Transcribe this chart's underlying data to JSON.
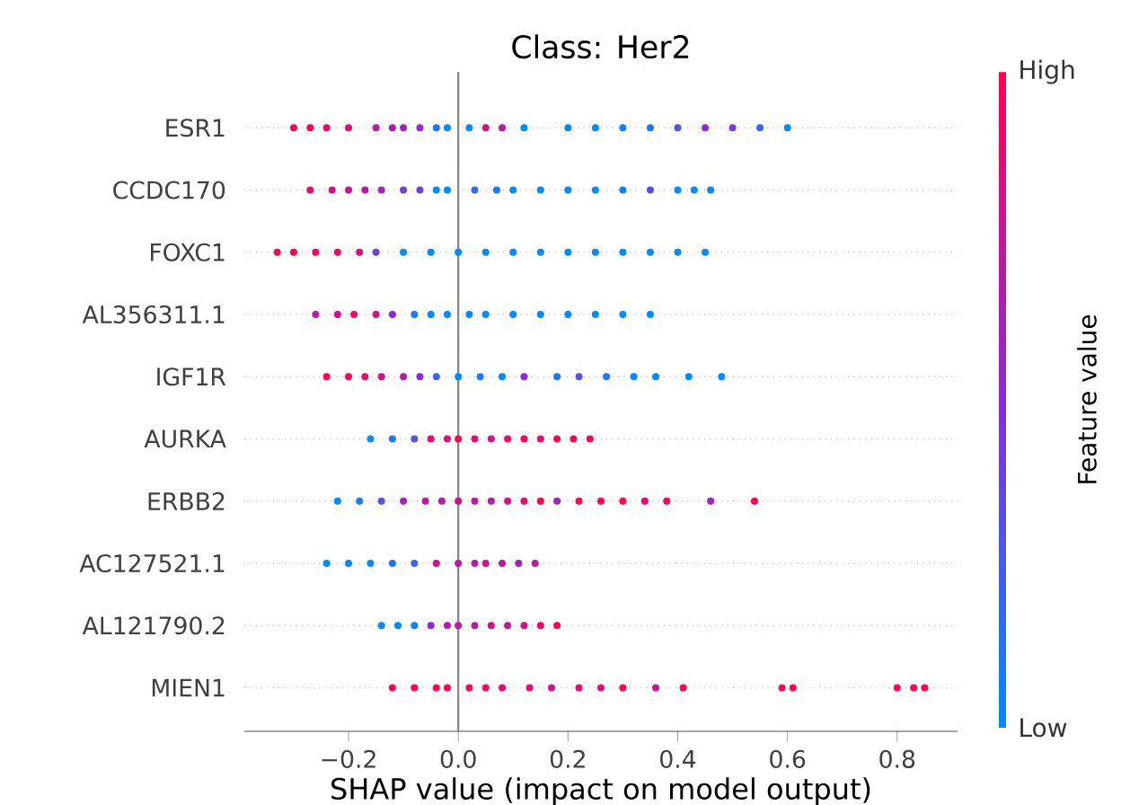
{
  "chart_data": {
    "type": "scatter",
    "orientation": "horizontal",
    "title": "Class: Her2",
    "xlabel": "SHAP value (impact on model output)",
    "clabel": "Feature value",
    "annotations": [
      "High",
      "Low"
    ],
    "categories": [
      "ESR1",
      "CCDC170",
      "FOXC1",
      "AL356311.1",
      "IGF1R",
      "AURKA",
      "ERBB2",
      "AC127521.1",
      "AL121790.2",
      "MIEN1"
    ],
    "series": [
      {
        "x": [
          "ESR1",
          "ESR1",
          "ESR1",
          "ESR1",
          "ESR1",
          "ESR1",
          "ESR1",
          "ESR1",
          "ESR1",
          "ESR1",
          "ESR1",
          "ESR1",
          "ESR1",
          "ESR1",
          "ESR1",
          "ESR1",
          "ESR1",
          "ESR1",
          "ESR1",
          "ESR1",
          "ESR1",
          "ESR1",
          "ESR1"
        ],
        "values": [
          -0.3,
          -0.27,
          -0.24,
          -0.2,
          -0.15,
          -0.12,
          -0.1,
          -0.07,
          -0.04,
          -0.02,
          0.02,
          0.05,
          0.08,
          0.12,
          0.2,
          0.25,
          0.3,
          0.35,
          0.4,
          0.45,
          0.5,
          0.55,
          0.6
        ],
        "colors": [
          "#ff0052",
          "#ff0052",
          "#e8096d",
          "#dc0d7a",
          "#b91aa3",
          "#ad1eb0",
          "#a122bd",
          "#9627cb",
          "#1c78f4",
          "#008bfb",
          "#008bfb",
          "#d01188",
          "#b91aa3",
          "#008bfb",
          "#008bfb",
          "#008bfb",
          "#0e82f8",
          "#1c78f4",
          "#5351e6",
          "#8a2bd8",
          "#6e3edf",
          "#3765ed",
          "#008bfb"
        ]
      },
      {
        "x": [
          "CCDC170",
          "CCDC170",
          "CCDC170",
          "CCDC170",
          "CCDC170",
          "CCDC170",
          "CCDC170",
          "CCDC170",
          "CCDC170",
          "CCDC170",
          "CCDC170",
          "CCDC170",
          "CCDC170",
          "CCDC170",
          "CCDC170",
          "CCDC170",
          "CCDC170",
          "CCDC170",
          "CCDC170",
          "CCDC170"
        ],
        "values": [
          -0.27,
          -0.23,
          -0.2,
          -0.17,
          -0.14,
          -0.1,
          -0.07,
          -0.04,
          -0.02,
          0.03,
          0.07,
          0.1,
          0.15,
          0.2,
          0.25,
          0.3,
          0.35,
          0.4,
          0.43,
          0.46
        ],
        "colors": [
          "#e8096d",
          "#d01188",
          "#c41595",
          "#b91aa3",
          "#a122bd",
          "#6e3edf",
          "#6e3edf",
          "#008bfb",
          "#008bfb",
          "#3765ed",
          "#1c78f4",
          "#008bfb",
          "#008bfb",
          "#008bfb",
          "#008bfb",
          "#0e82f8",
          "#5351e6",
          "#008bfb",
          "#008bfb",
          "#008bfb"
        ]
      },
      {
        "x": [
          "FOXC1",
          "FOXC1",
          "FOXC1",
          "FOXC1",
          "FOXC1",
          "FOXC1",
          "FOXC1",
          "FOXC1",
          "FOXC1",
          "FOXC1",
          "FOXC1",
          "FOXC1",
          "FOXC1",
          "FOXC1",
          "FOXC1",
          "FOXC1",
          "FOXC1",
          "FOXC1"
        ],
        "values": [
          -0.33,
          -0.3,
          -0.26,
          -0.22,
          -0.18,
          -0.15,
          -0.1,
          -0.05,
          0,
          0.05,
          0.1,
          0.15,
          0.2,
          0.25,
          0.3,
          0.35,
          0.4,
          0.45
        ],
        "colors": [
          "#ff0052",
          "#ff0052",
          "#f40460",
          "#e8096d",
          "#dc0d7a",
          "#6e3edf",
          "#008bfb",
          "#008bfb",
          "#008bfb",
          "#008bfb",
          "#008bfb",
          "#008bfb",
          "#008bfb",
          "#008bfb",
          "#008bfb",
          "#008bfb",
          "#008bfb",
          "#008bfb"
        ]
      },
      {
        "x": [
          "AL356311.1",
          "AL356311.1",
          "AL356311.1",
          "AL356311.1",
          "AL356311.1",
          "AL356311.1",
          "AL356311.1",
          "AL356311.1",
          "AL356311.1",
          "AL356311.1",
          "AL356311.1",
          "AL356311.1",
          "AL356311.1",
          "AL356311.1",
          "AL356311.1",
          "AL356311.1"
        ],
        "values": [
          -0.26,
          -0.22,
          -0.19,
          -0.15,
          -0.12,
          -0.08,
          -0.05,
          -0.02,
          0.02,
          0.05,
          0.1,
          0.15,
          0.2,
          0.25,
          0.3,
          0.35
        ],
        "colors": [
          "#b91aa3",
          "#d01188",
          "#e8096d",
          "#d01188",
          "#8a2bd8",
          "#1c78f4",
          "#008bfb",
          "#008bfb",
          "#008bfb",
          "#008bfb",
          "#008bfb",
          "#008bfb",
          "#008bfb",
          "#008bfb",
          "#008bfb",
          "#008bfb"
        ]
      },
      {
        "x": [
          "IGF1R",
          "IGF1R",
          "IGF1R",
          "IGF1R",
          "IGF1R",
          "IGF1R",
          "IGF1R",
          "IGF1R",
          "IGF1R",
          "IGF1R",
          "IGF1R",
          "IGF1R",
          "IGF1R",
          "IGF1R",
          "IGF1R",
          "IGF1R",
          "IGF1R",
          "IGF1R"
        ],
        "values": [
          -0.24,
          -0.2,
          -0.17,
          -0.14,
          -0.1,
          -0.07,
          -0.04,
          0,
          0.04,
          0.08,
          0.12,
          0.18,
          0.22,
          0.27,
          0.32,
          0.36,
          0.42,
          0.48
        ],
        "colors": [
          "#ff0052",
          "#f40460",
          "#e8096d",
          "#d01188",
          "#b91aa3",
          "#8a2bd8",
          "#3765ed",
          "#008bfb",
          "#1c78f4",
          "#008bfb",
          "#8a2bd8",
          "#1c78f4",
          "#5351e6",
          "#1c78f4",
          "#008bfb",
          "#008bfb",
          "#008bfb",
          "#008bfb"
        ]
      },
      {
        "x": [
          "AURKA",
          "AURKA",
          "AURKA",
          "AURKA",
          "AURKA",
          "AURKA",
          "AURKA",
          "AURKA",
          "AURKA",
          "AURKA",
          "AURKA",
          "AURKA",
          "AURKA",
          "AURKA"
        ],
        "values": [
          -0.16,
          -0.12,
          -0.08,
          -0.05,
          -0.02,
          0,
          0.03,
          0.06,
          0.09,
          0.12,
          0.15,
          0.18,
          0.21,
          0.24
        ],
        "colors": [
          "#008bfb",
          "#1c78f4",
          "#5351e6",
          "#e8096d",
          "#dc0d7a",
          "#ff0052",
          "#e8096d",
          "#d01188",
          "#f40460",
          "#ff0052",
          "#e8096d",
          "#ff0052",
          "#ff0052",
          "#ff0052"
        ]
      },
      {
        "x": [
          "ERBB2",
          "ERBB2",
          "ERBB2",
          "ERBB2",
          "ERBB2",
          "ERBB2",
          "ERBB2",
          "ERBB2",
          "ERBB2",
          "ERBB2",
          "ERBB2",
          "ERBB2",
          "ERBB2",
          "ERBB2",
          "ERBB2",
          "ERBB2",
          "ERBB2",
          "ERBB2",
          "ERBB2",
          "ERBB2"
        ],
        "values": [
          -0.22,
          -0.18,
          -0.14,
          -0.1,
          -0.06,
          -0.03,
          0,
          0.03,
          0.06,
          0.09,
          0.12,
          0.15,
          0.18,
          0.22,
          0.26,
          0.3,
          0.34,
          0.38,
          0.46,
          0.54
        ],
        "colors": [
          "#008bfb",
          "#1c78f4",
          "#5351e6",
          "#a122bd",
          "#b91aa3",
          "#b91aa3",
          "#d01188",
          "#b91aa3",
          "#ad1eb0",
          "#d01188",
          "#e8096d",
          "#ff0052",
          "#a122bd",
          "#ff0052",
          "#ff0052",
          "#ff0052",
          "#e8096d",
          "#ff0052",
          "#a122bd",
          "#ff0052"
        ]
      },
      {
        "x": [
          "AC127521.1",
          "AC127521.1",
          "AC127521.1",
          "AC127521.1",
          "AC127521.1",
          "AC127521.1",
          "AC127521.1",
          "AC127521.1",
          "AC127521.1",
          "AC127521.1",
          "AC127521.1",
          "AC127521.1"
        ],
        "values": [
          -0.24,
          -0.2,
          -0.16,
          -0.12,
          -0.08,
          -0.04,
          0,
          0.03,
          0.05,
          0.08,
          0.11,
          0.14
        ],
        "colors": [
          "#008bfb",
          "#008bfb",
          "#008bfb",
          "#1c78f4",
          "#3765ed",
          "#d01188",
          "#b91aa3",
          "#b91aa3",
          "#d01188",
          "#b91aa3",
          "#a122bd",
          "#b91aa3"
        ]
      },
      {
        "x": [
          "AL121790.2",
          "AL121790.2",
          "AL121790.2",
          "AL121790.2",
          "AL121790.2",
          "AL121790.2",
          "AL121790.2",
          "AL121790.2",
          "AL121790.2",
          "AL121790.2",
          "AL121790.2",
          "AL121790.2"
        ],
        "values": [
          -0.14,
          -0.11,
          -0.08,
          -0.05,
          -0.02,
          0,
          0.03,
          0.06,
          0.09,
          0.12,
          0.15,
          0.18
        ],
        "colors": [
          "#008bfb",
          "#008bfb",
          "#0e82f8",
          "#8a2bd8",
          "#b91aa3",
          "#b91aa3",
          "#b91aa3",
          "#d01188",
          "#b91aa3",
          "#d01188",
          "#f40460",
          "#ff0052"
        ]
      },
      {
        "x": [
          "MIEN1",
          "MIEN1",
          "MIEN1",
          "MIEN1",
          "MIEN1",
          "MIEN1",
          "MIEN1",
          "MIEN1",
          "MIEN1",
          "MIEN1",
          "MIEN1",
          "MIEN1",
          "MIEN1",
          "MIEN1",
          "MIEN1",
          "MIEN1",
          "MIEN1",
          "MIEN1",
          "MIEN1"
        ],
        "values": [
          -0.12,
          -0.08,
          -0.04,
          -0.02,
          0.02,
          0.05,
          0.08,
          0.13,
          0.17,
          0.22,
          0.26,
          0.3,
          0.36,
          0.41,
          0.59,
          0.61,
          0.8,
          0.83,
          0.85
        ],
        "colors": [
          "#ff0052",
          "#ff0052",
          "#ff0052",
          "#ff0052",
          "#ff0052",
          "#f40460",
          "#e8096d",
          "#e8096d",
          "#d01188",
          "#e8096d",
          "#dc0d7a",
          "#ff0052",
          "#d01188",
          "#ff0052",
          "#ff0052",
          "#ff0052",
          "#ff0052",
          "#ff0052",
          "#ff0052"
        ]
      }
    ],
    "xlim": [
      -0.39,
      0.91
    ],
    "xticks": [
      {
        "value": -0.2,
        "label": "−0.2"
      },
      {
        "value": 0,
        "label": "0.0"
      },
      {
        "value": 0.2,
        "label": "0.2"
      },
      {
        "value": 0.4,
        "label": "0.4"
      },
      {
        "value": 0.6,
        "label": "0.6"
      },
      {
        "value": 0.8,
        "label": "0.8"
      }
    ],
    "grid": "y",
    "marker": "circle",
    "ref_lines": [
      {
        "axis": "x",
        "value": 0,
        "color": "#808080"
      }
    ]
  }
}
